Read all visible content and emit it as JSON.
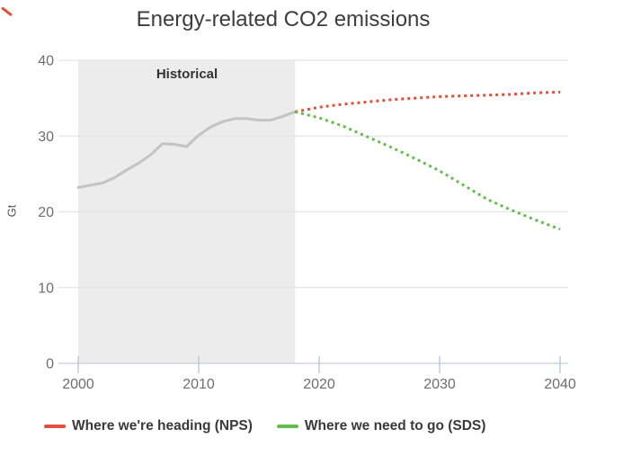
{
  "title": "Energy-related CO2 emissions",
  "y_axis_title": "Gt",
  "historical_label": "Historical",
  "colors": {
    "nps_red": "#e2503c",
    "sds_green": "#64bc4c",
    "historical_line": "#c3c3c3",
    "historical_band": "#ececec",
    "gridline": "#e4e4e4",
    "axis_line": "#c6cedb",
    "tick_mark": "#adc0da",
    "tick_label": "#6e6e6e",
    "corner_mark": "#e2503c"
  },
  "legend": {
    "items": [
      {
        "label": "Where we're heading (NPS)",
        "color": "#e2503c"
      },
      {
        "label": "Where we need to go (SDS)",
        "color": "#64bc4c"
      }
    ]
  },
  "chart_data": {
    "type": "line",
    "title": "Energy-related CO2 emissions",
    "xlabel": "",
    "ylabel": "Gt",
    "xlim": [
      2000,
      2040
    ],
    "ylim": [
      0,
      40
    ],
    "xticks": [
      2000,
      2010,
      2020,
      2030,
      2040
    ],
    "yticks": [
      0,
      10,
      20,
      30,
      40
    ],
    "grid": true,
    "legend_position": "bottom",
    "historical_region": {
      "label": "Historical",
      "from": 2000,
      "to": 2018
    },
    "series": [
      {
        "name": "Historical",
        "style": "solid",
        "color": "#c3c3c3",
        "x": [
          2000,
          2001,
          2002,
          2003,
          2004,
          2005,
          2006,
          2007,
          2008,
          2009,
          2010,
          2011,
          2012,
          2013,
          2014,
          2015,
          2016,
          2017,
          2018
        ],
        "values": [
          23.2,
          23.5,
          23.8,
          24.5,
          25.5,
          26.4,
          27.5,
          29.0,
          28.9,
          28.6,
          30.1,
          31.2,
          31.9,
          32.3,
          32.3,
          32.1,
          32.1,
          32.6,
          33.2
        ]
      },
      {
        "name": "Where we're heading (NPS)",
        "style": "dotted",
        "color": "#e2503c",
        "x": [
          2018,
          2020,
          2022,
          2024,
          2026,
          2028,
          2030,
          2032,
          2034,
          2036,
          2038,
          2040
        ],
        "values": [
          33.2,
          33.8,
          34.2,
          34.5,
          34.8,
          35.0,
          35.2,
          35.3,
          35.4,
          35.5,
          35.7,
          35.8
        ]
      },
      {
        "name": "Where we need to go (SDS)",
        "style": "dotted",
        "color": "#64bc4c",
        "x": [
          2018,
          2020,
          2022,
          2024,
          2026,
          2028,
          2030,
          2032,
          2034,
          2036,
          2038,
          2040
        ],
        "values": [
          33.2,
          32.4,
          31.3,
          29.9,
          28.5,
          27.0,
          25.4,
          23.5,
          21.6,
          20.2,
          18.9,
          17.7
        ]
      }
    ]
  }
}
